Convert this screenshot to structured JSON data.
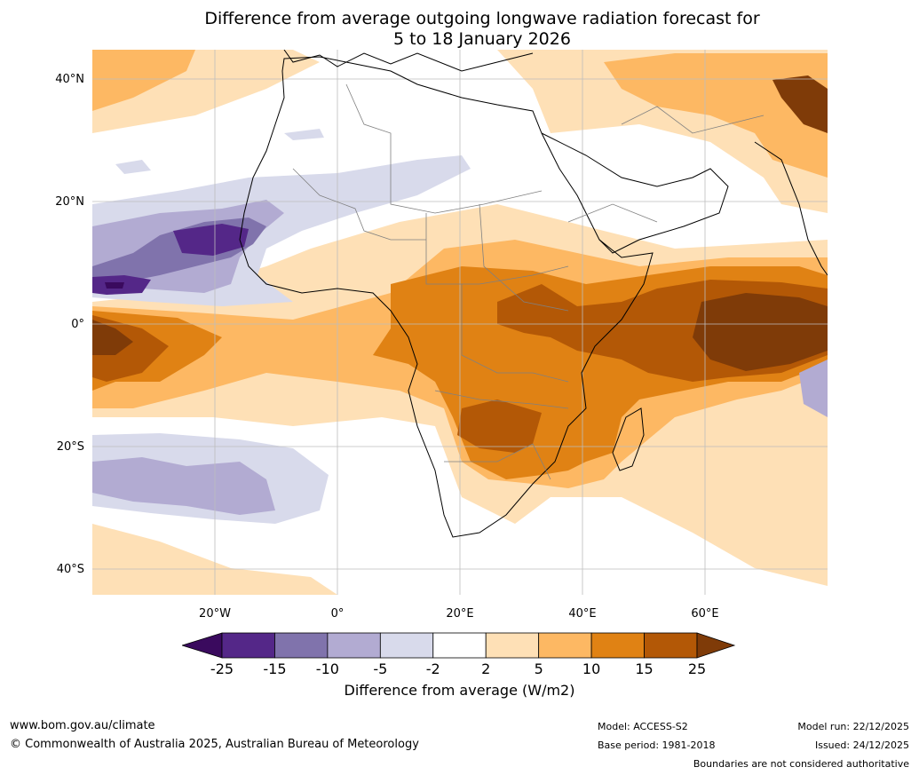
{
  "title": {
    "line1": "Difference from average outgoing longwave radiation forecast for",
    "line2": "5 to 18 January 2026"
  },
  "map": {
    "lat_ticks": [
      "40°N",
      "20°N",
      "0°",
      "20°S",
      "40°S"
    ],
    "lon_ticks": [
      "20°W",
      "0°",
      "20°E",
      "40°E",
      "60°E"
    ],
    "colors": {
      "neg25": "#3a0a5e",
      "neg15": "#542788",
      "neg10": "#8073ac",
      "neg5": "#b2abd2",
      "neg2": "#d8daeb",
      "neutral": "#ffffff",
      "pos2": "#fee0b6",
      "pos5": "#fdb863",
      "pos10": "#e08214",
      "pos15": "#b35806",
      "pos25": "#7f3b08"
    }
  },
  "colorbar": {
    "labels": [
      "-25",
      "-15",
      "-10",
      "-5",
      "-2",
      "2",
      "5",
      "10",
      "15",
      "25"
    ],
    "colors": [
      "#542788",
      "#8073ac",
      "#b2abd2",
      "#d8daeb",
      "#ffffff",
      "#fee0b6",
      "#fdb863",
      "#e08214",
      "#b35806"
    ],
    "low_color": "#3a0a5e",
    "high_color": "#7f3b08",
    "title": "Difference from average (W/m2)"
  },
  "footer": {
    "website": "www.bom.gov.au/climate",
    "copyright": "© Commonwealth of Australia 2025, Australian Bureau of Meteorology",
    "model": "Model: ACCESS-S2",
    "base_period": "Base period: 1981-2018",
    "model_run": "Model run: 22/12/2025",
    "issued": "Issued: 24/12/2025",
    "disclaimer": "Boundaries are not considered authoritative"
  }
}
